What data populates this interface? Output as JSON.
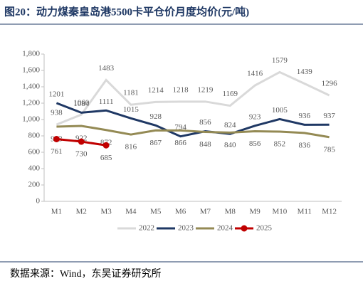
{
  "chart_data": {
    "type": "line",
    "title": "图20：动力煤秦皇岛港5500卡平仓价月度均价(元/吨)",
    "source": "数据来源：Wind，东吴证券研究所",
    "categories": [
      "M1",
      "M2",
      "M3",
      "M4",
      "M5",
      "M6",
      "M7",
      "M8",
      "M9",
      "M10",
      "M11",
      "M12"
    ],
    "series": [
      {
        "name": "2022",
        "color": "#d9d9d9",
        "values": [
          938,
          1060,
          1483,
          1181,
          1214,
          1218,
          1219,
          1169,
          1416,
          1579,
          1439,
          1296
        ]
      },
      {
        "name": "2023",
        "color": "#1f3864",
        "values": [
          1201,
          1084,
          1111,
          1015,
          928,
          794,
          856,
          824,
          923,
          1005,
          936,
          937
        ]
      },
      {
        "name": "2024",
        "color": "#948a54",
        "values": [
          913,
          922,
          872,
          816,
          867,
          866,
          848,
          840,
          856,
          852,
          836,
          785
        ]
      },
      {
        "name": "2025",
        "color": "#c00000",
        "values": [
          761,
          730,
          685,
          null,
          null,
          null,
          null,
          null,
          null,
          null,
          null,
          null
        ],
        "markers": true
      }
    ],
    "ylim": [
      0,
      1800
    ],
    "yticks": [
      0,
      200,
      400,
      600,
      800,
      {
        "value": 1000,
        "label": "1,000"
      },
      {
        "value": 1200,
        "label": "1,200"
      },
      {
        "value": 1400,
        "label": "1,400"
      },
      {
        "value": 1600,
        "label": "1,600"
      },
      {
        "value": 1800,
        "label": "1,800"
      }
    ],
    "legend": "bottom"
  }
}
